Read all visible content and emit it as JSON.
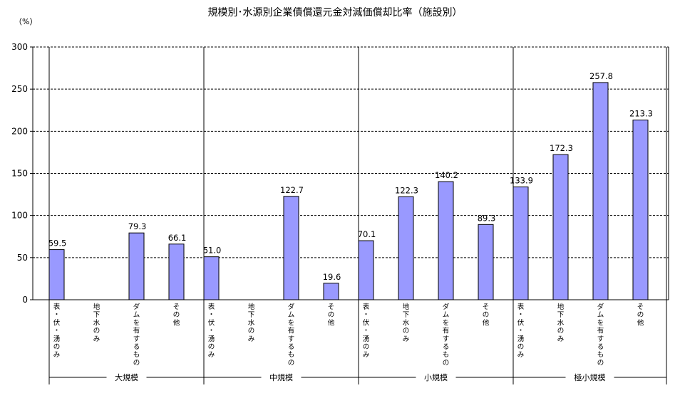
{
  "chart_data": {
    "type": "bar",
    "title": "規模別･水源別企業債償還元金対減価償却比率（施設別）",
    "unit": "（%）",
    "ylim": [
      0,
      300
    ],
    "yticks": [
      "0",
      "50",
      "100",
      "150",
      "200",
      "250",
      "300"
    ],
    "grid": "horizontal dashed",
    "bar_color": "#9999ff",
    "groups": [
      {
        "name": "大規模",
        "categories": [
          "表・伏・湧のみ",
          "地下水のみ",
          "ダムを有するもの",
          "その他"
        ],
        "values": [
          59.5,
          null,
          79.3,
          66.1
        ],
        "labels": [
          "59.5",
          "",
          "79.3",
          "66.1"
        ]
      },
      {
        "name": "中規模",
        "categories": [
          "表・伏・湧のみ",
          "地下水のみ",
          "ダムを有するもの",
          "その他"
        ],
        "values": [
          51.0,
          null,
          122.7,
          19.6
        ],
        "labels": [
          "51.0",
          "",
          "122.7",
          "19.6"
        ]
      },
      {
        "name": "小規模",
        "categories": [
          "表・伏・湧のみ",
          "地下水のみ",
          "ダムを有するもの",
          "その他"
        ],
        "values": [
          70.1,
          122.3,
          140.2,
          89.3
        ],
        "labels": [
          "70.1",
          "122.3",
          "140.2",
          "89.3"
        ]
      },
      {
        "name": "極小規模",
        "categories": [
          "表・伏・湧のみ",
          "地下水のみ",
          "ダムを有するもの",
          "その他"
        ],
        "values": [
          133.9,
          172.3,
          257.8,
          213.3
        ],
        "labels": [
          "133.9",
          "172.3",
          "257.8",
          "213.3"
        ]
      }
    ]
  }
}
